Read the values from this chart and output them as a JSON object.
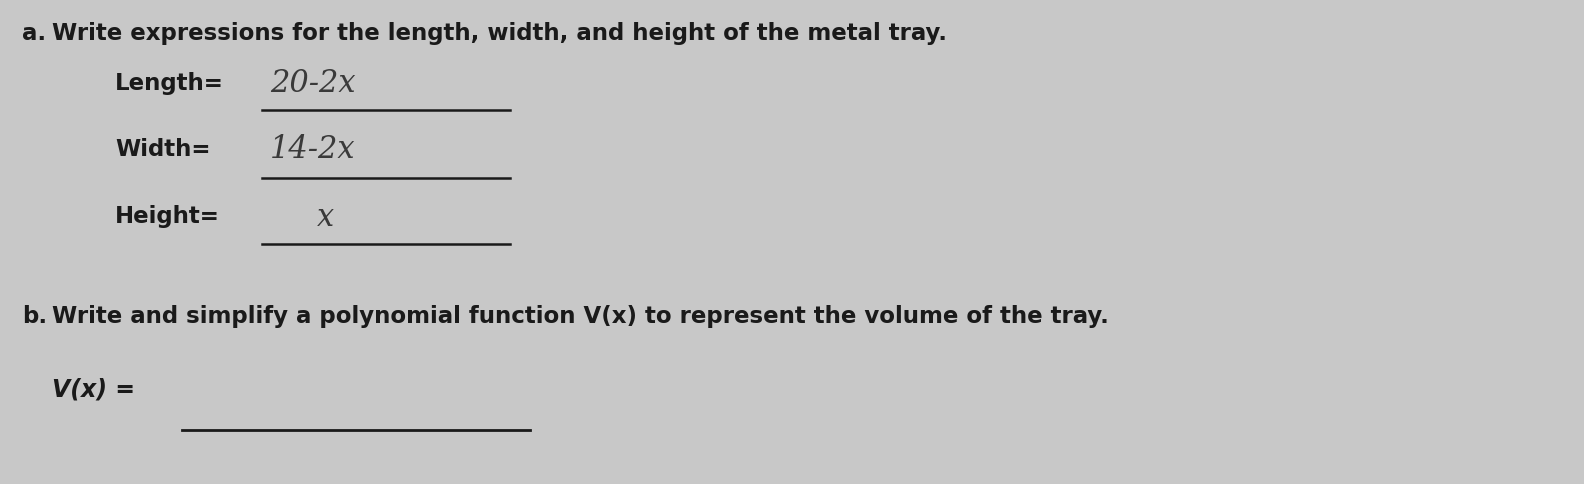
{
  "background_color": "#c8c8c8",
  "part_a_label": "a.",
  "part_a_text": "Write expressions for the length, width, and height of the metal tray.",
  "length_label": "Length=",
  "length_answer": "20-2x",
  "width_label": "Width=",
  "width_answer": "14-2x",
  "height_label": "Height=",
  "height_answer": "x",
  "part_b_label": "b.",
  "part_b_text": "Write and simplify a polynomial function V(x) to represent the volume of the tray.",
  "vx_label": "V(x) =",
  "text_color": "#1a1a1a",
  "handwritten_color": "#3a3a3a",
  "line_color": "#1a1a1a",
  "title_fontsize": 16.5,
  "label_fontsize": 16.5,
  "handwritten_fontsize": 22,
  "vx_fontsize": 17
}
